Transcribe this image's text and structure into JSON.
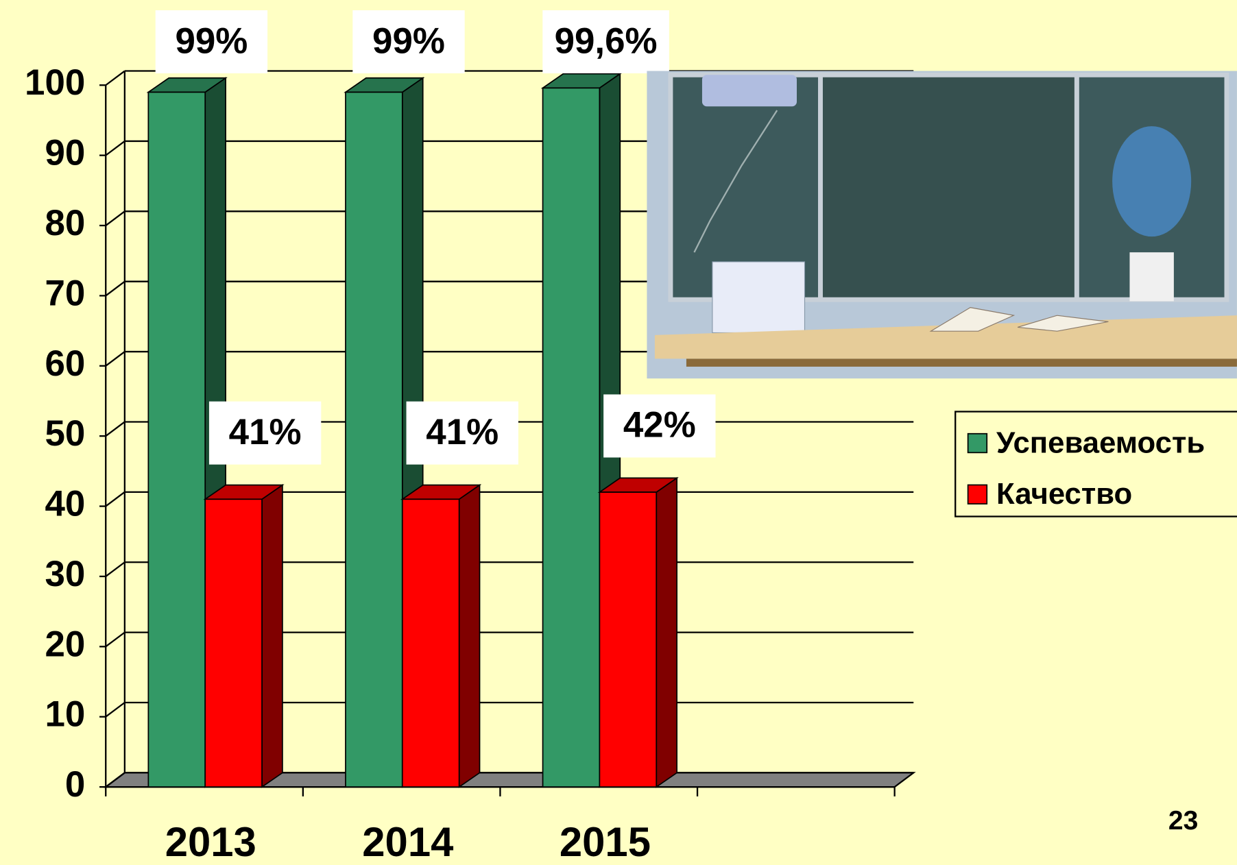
{
  "chart_data": {
    "type": "bar3d",
    "categories": [
      "2013",
      "2014",
      "2015",
      null
    ],
    "series": [
      {
        "name": "Успеваемость",
        "color": "#339966",
        "values": [
          99,
          99,
          99.6,
          null
        ],
        "value_labels": [
          "99%",
          "99%",
          "99,6%",
          null
        ]
      },
      {
        "name": "Качество",
        "color": "#ff0000",
        "values": [
          41,
          41,
          42,
          null
        ],
        "value_labels": [
          "41%",
          "41%",
          "42%",
          null
        ]
      }
    ],
    "ylim": [
      0,
      100
    ],
    "yticks": [
      0,
      10,
      20,
      30,
      40,
      50,
      60,
      70,
      80,
      90,
      100
    ],
    "grid": true,
    "legend": "right"
  },
  "page_number": "23"
}
